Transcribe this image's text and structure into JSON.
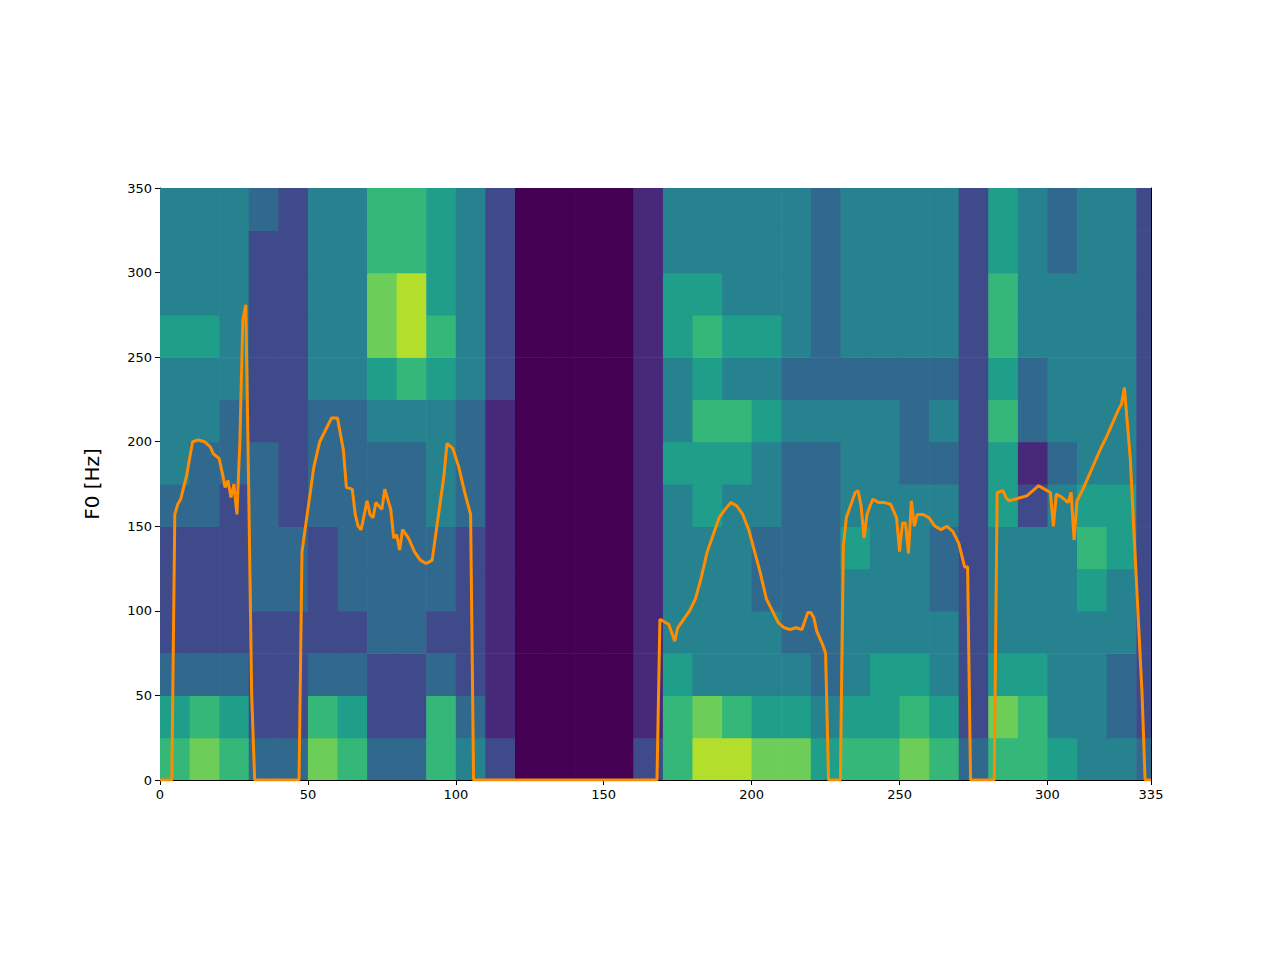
{
  "chart_data": {
    "type": "line",
    "ylabel": "F0 [Hz]",
    "color": "#ff8c00",
    "xlim": [
      0,
      335
    ],
    "xticks": [
      0,
      50,
      100,
      150,
      200,
      250,
      300
    ],
    "ylim": [
      0,
      350
    ],
    "yticks": [
      0,
      50,
      100,
      150,
      200,
      250,
      300,
      350
    ],
    "x": [
      0,
      4,
      5,
      6,
      7,
      9,
      11,
      13,
      15,
      17,
      18,
      20,
      21,
      22,
      23,
      24,
      25,
      26,
      27,
      28,
      29,
      30,
      31,
      32,
      47,
      48,
      50,
      52,
      54,
      56,
      58,
      60,
      62,
      63,
      65,
      66,
      67,
      68,
      70,
      71,
      72,
      73,
      75,
      76,
      78,
      79,
      80,
      81,
      82,
      84,
      86,
      88,
      90,
      92,
      94,
      96,
      97,
      99,
      101,
      103,
      105,
      106,
      168,
      169,
      171,
      172,
      173,
      174,
      175,
      177,
      179,
      181,
      183,
      185,
      187,
      189,
      191,
      193,
      195,
      197,
      199,
      201,
      203,
      205,
      207,
      209,
      211,
      213,
      215,
      217,
      219,
      220,
      221,
      222,
      224,
      225,
      226,
      230,
      231,
      232,
      234,
      235,
      236,
      237,
      238,
      239,
      240,
      241,
      243,
      245,
      247,
      249,
      250,
      251,
      252,
      253,
      254,
      255,
      256,
      258,
      260,
      262,
      264,
      266,
      268,
      270,
      272,
      273,
      274,
      282,
      283,
      285,
      286,
      287,
      289,
      291,
      293,
      295,
      297,
      299,
      301,
      302,
      303,
      305,
      307,
      308,
      309,
      310,
      312,
      314,
      316,
      318,
      320,
      322,
      324,
      325,
      326,
      328,
      330,
      332,
      333,
      335
    ],
    "values": [
      0,
      0,
      157,
      163,
      166,
      180,
      200,
      201,
      200,
      197,
      193,
      190,
      182,
      173,
      177,
      167,
      175,
      157,
      200,
      272,
      281,
      170,
      50,
      0,
      0,
      135,
      160,
      185,
      200,
      207,
      214,
      214,
      195,
      173,
      172,
      157,
      150,
      148,
      165,
      157,
      155,
      164,
      160,
      172,
      160,
      143,
      145,
      136,
      148,
      143,
      135,
      130,
      128,
      130,
      155,
      180,
      199,
      196,
      185,
      170,
      157,
      0,
      0,
      95,
      93,
      92,
      87,
      82,
      90,
      95,
      100,
      107,
      120,
      135,
      145,
      155,
      160,
      164,
      162,
      157,
      148,
      135,
      122,
      107,
      100,
      93,
      90,
      89,
      90,
      89,
      99,
      99,
      96,
      88,
      80,
      75,
      0,
      0,
      138,
      155,
      165,
      170,
      171,
      162,
      143,
      157,
      162,
      166,
      164,
      164,
      163,
      155,
      135,
      152,
      152,
      134,
      165,
      150,
      157,
      157,
      155,
      150,
      148,
      150,
      147,
      140,
      126,
      126,
      0,
      0,
      170,
      171,
      167,
      165,
      166,
      167,
      168,
      171,
      174,
      172,
      170,
      150,
      169,
      167,
      164,
      170,
      142,
      165,
      172,
      180,
      188,
      196,
      203,
      211,
      219,
      222,
      232,
      190,
      120,
      50,
      0,
      0
    ],
    "cell_x_edges": [
      0,
      10,
      20,
      30,
      40,
      50,
      60,
      70,
      80,
      90,
      100,
      110,
      120,
      130,
      140,
      150,
      160,
      170,
      180,
      190,
      200,
      210,
      220,
      230,
      240,
      250,
      260,
      270,
      280,
      290,
      300,
      310,
      320,
      330,
      335
    ],
    "cell_y_edges": [
      0,
      25,
      50,
      75,
      100,
      125,
      150,
      175,
      200,
      225,
      250,
      275,
      300,
      325,
      350
    ],
    "cell_range": [
      0,
      9
    ],
    "cells": [
      [
        6,
        7,
        6,
        3,
        3,
        7,
        6,
        3,
        3,
        6,
        4,
        2,
        0,
        0,
        0,
        0,
        2,
        6,
        8,
        8,
        7,
        7,
        5,
        6,
        6,
        7,
        6,
        3,
        6,
        6,
        5,
        4,
        4,
        3
      ],
      [
        5,
        6,
        5,
        2,
        2,
        6,
        5,
        2,
        2,
        6,
        3,
        1,
        0,
        0,
        0,
        0,
        1,
        6,
        7,
        6,
        5,
        5,
        4,
        5,
        5,
        6,
        5,
        2,
        7,
        6,
        4,
        4,
        3,
        2
      ],
      [
        3,
        3,
        3,
        2,
        2,
        3,
        3,
        2,
        2,
        3,
        2,
        1,
        0,
        0,
        0,
        0,
        1,
        5,
        4,
        4,
        4,
        4,
        3,
        4,
        5,
        5,
        4,
        2,
        5,
        5,
        4,
        4,
        3,
        2
      ],
      [
        2,
        2,
        2,
        2,
        2,
        2,
        2,
        3,
        3,
        2,
        2,
        1,
        0,
        0,
        0,
        0,
        1,
        4,
        4,
        4,
        4,
        3,
        3,
        4,
        4,
        4,
        4,
        2,
        4,
        4,
        4,
        4,
        4,
        2
      ],
      [
        2,
        2,
        2,
        3,
        3,
        2,
        3,
        3,
        3,
        3,
        2,
        1,
        0,
        0,
        0,
        0,
        1,
        4,
        4,
        4,
        3,
        3,
        3,
        4,
        4,
        4,
        3,
        2,
        4,
        4,
        4,
        5,
        4,
        2
      ],
      [
        2,
        2,
        2,
        3,
        3,
        2,
        3,
        3,
        3,
        3,
        2,
        1,
        0,
        0,
        0,
        0,
        1,
        4,
        4,
        4,
        3,
        3,
        3,
        5,
        4,
        4,
        3,
        2,
        4,
        4,
        4,
        6,
        5,
        2
      ],
      [
        3,
        3,
        2,
        3,
        2,
        3,
        3,
        3,
        3,
        4,
        3,
        1,
        0,
        0,
        0,
        0,
        1,
        4,
        5,
        4,
        4,
        3,
        3,
        4,
        4,
        4,
        4,
        2,
        5,
        2,
        4,
        5,
        5,
        2
      ],
      [
        4,
        3,
        3,
        3,
        2,
        3,
        3,
        3,
        3,
        4,
        3,
        1,
        0,
        0,
        0,
        0,
        1,
        5,
        5,
        5,
        4,
        3,
        3,
        4,
        4,
        3,
        3,
        2,
        5,
        1,
        3,
        4,
        4,
        2
      ],
      [
        4,
        4,
        3,
        2,
        2,
        3,
        3,
        4,
        4,
        4,
        3,
        1,
        0,
        0,
        0,
        0,
        1,
        4,
        6,
        6,
        5,
        4,
        4,
        4,
        4,
        3,
        4,
        2,
        6,
        3,
        4,
        4,
        4,
        2
      ],
      [
        4,
        4,
        4,
        2,
        2,
        4,
        4,
        5,
        6,
        5,
        4,
        2,
        0,
        0,
        0,
        0,
        1,
        4,
        5,
        4,
        4,
        3,
        3,
        3,
        3,
        3,
        3,
        2,
        5,
        3,
        4,
        4,
        4,
        2
      ],
      [
        5,
        5,
        4,
        2,
        2,
        4,
        4,
        7,
        8,
        6,
        4,
        2,
        0,
        0,
        0,
        0,
        1,
        5,
        6,
        5,
        5,
        4,
        3,
        4,
        4,
        4,
        4,
        2,
        6,
        4,
        4,
        4,
        4,
        2
      ],
      [
        4,
        4,
        4,
        2,
        2,
        4,
        4,
        7,
        8,
        5,
        4,
        2,
        0,
        0,
        0,
        0,
        1,
        5,
        5,
        4,
        4,
        4,
        3,
        4,
        4,
        4,
        4,
        2,
        6,
        4,
        4,
        4,
        4,
        2
      ],
      [
        4,
        4,
        4,
        2,
        2,
        4,
        4,
        6,
        6,
        5,
        4,
        2,
        0,
        0,
        0,
        0,
        1,
        4,
        4,
        4,
        4,
        4,
        3,
        4,
        4,
        4,
        4,
        2,
        5,
        4,
        3,
        4,
        4,
        2
      ],
      [
        4,
        4,
        4,
        3,
        2,
        4,
        4,
        6,
        6,
        5,
        4,
        2,
        0,
        0,
        0,
        0,
        1,
        4,
        4,
        4,
        4,
        4,
        3,
        4,
        4,
        4,
        4,
        2,
        5,
        4,
        3,
        4,
        4,
        2
      ]
    ]
  }
}
